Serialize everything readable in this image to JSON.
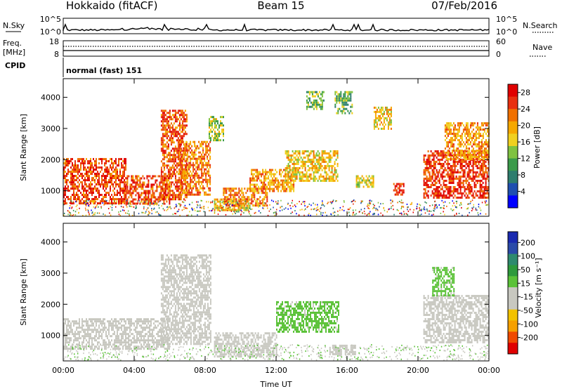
{
  "header": {
    "station": "Hokkaido (fitACF)",
    "beam": "Beam 15",
    "date": "07/Feb/2016"
  },
  "top_panel": {
    "left_label": "N.Sky",
    "right_label": "N.Search",
    "left_ticks": [
      "10^5",
      "10^0"
    ],
    "right_ticks": [
      "10^5",
      "10^0"
    ]
  },
  "freq_panel": {
    "left_label_1": "Freq.",
    "left_label_2": "[MHz]",
    "right_label": "Nave",
    "left_ticks": [
      "18",
      "8"
    ],
    "right_ticks": [
      "60",
      "0"
    ]
  },
  "cpid": {
    "label": "CPID",
    "value": "normal (fast) 151"
  },
  "colors": {
    "power": [
      "#0000ff",
      "#1f4fb0",
      "#2e7d6e",
      "#3a9a4a",
      "#7fc241",
      "#f0d020",
      "#f6a800",
      "#f07000",
      "#e83010",
      "#e00000"
    ],
    "velocity": [
      "#e00000",
      "#f04a00",
      "#f6a000",
      "#f2c200",
      "#c8c8c0",
      "#c8c8c0",
      "#5bc238",
      "#2e9a3c",
      "#2e8a6e",
      "#2a4aa8",
      "#1a2ab0"
    ]
  },
  "chart_data": [
    {
      "type": "heatmap",
      "title": "",
      "xlabel": "",
      "ylabel": "Slant Range [km]",
      "xlim": [
        0,
        24
      ],
      "ylim": [
        180,
        4600
      ],
      "x_ticks": [
        0,
        4,
        8,
        12,
        16,
        20,
        24
      ],
      "x_tick_labels": [
        "00:00",
        "04:00",
        "08:00",
        "12:00",
        "16:00",
        "20:00",
        "00:00"
      ],
      "y_ticks": [
        1000,
        2000,
        3000,
        4000
      ],
      "colorbar": {
        "label": "Power [dB]",
        "ticks": [
          "4",
          "8",
          "12",
          "16",
          "20",
          "24",
          "28"
        ],
        "range": [
          0,
          30
        ]
      },
      "regions": [
        {
          "t": [
            0.0,
            3.5
          ],
          "r": [
            600,
            2050
          ],
          "level": 25
        },
        {
          "t": [
            3.5,
            6.0
          ],
          "r": [
            600,
            1500
          ],
          "level": 24
        },
        {
          "t": [
            5.5,
            7.0
          ],
          "r": [
            700,
            3600
          ],
          "level": 24
        },
        {
          "t": [
            6.5,
            8.3
          ],
          "r": [
            900,
            2600
          ],
          "level": 22
        },
        {
          "t": [
            8.2,
            9.0
          ],
          "r": [
            2600,
            3400
          ],
          "level": 14
        },
        {
          "t": [
            8.5,
            10.5
          ],
          "r": [
            350,
            750
          ],
          "level": 18
        },
        {
          "t": [
            9.0,
            11.5
          ],
          "r": [
            500,
            1100
          ],
          "level": 22
        },
        {
          "t": [
            10.5,
            13.0
          ],
          "r": [
            1000,
            1700
          ],
          "level": 20
        },
        {
          "t": [
            12.5,
            15.5
          ],
          "r": [
            1300,
            2300
          ],
          "level": 18
        },
        {
          "t": [
            13.7,
            14.7
          ],
          "r": [
            3600,
            4200
          ],
          "level": 12
        },
        {
          "t": [
            15.3,
            16.3
          ],
          "r": [
            3500,
            4200
          ],
          "level": 12
        },
        {
          "t": [
            16.5,
            17.5
          ],
          "r": [
            1100,
            1500
          ],
          "level": 16
        },
        {
          "t": [
            17.5,
            18.5
          ],
          "r": [
            3000,
            3700
          ],
          "level": 18
        },
        {
          "t": [
            18.6,
            19.2
          ],
          "r": [
            900,
            1250
          ],
          "level": 26
        },
        {
          "t": [
            20.3,
            24.0
          ],
          "r": [
            800,
            2300
          ],
          "level": 26
        },
        {
          "t": [
            21.5,
            24.0
          ],
          "r": [
            2000,
            3200
          ],
          "level": 20
        }
      ]
    },
    {
      "type": "heatmap",
      "title": "",
      "xlabel": "Time UT",
      "ylabel": "Slant Range [km]",
      "xlim": [
        0,
        24
      ],
      "ylim": [
        180,
        4600
      ],
      "x_ticks": [
        0,
        4,
        8,
        12,
        16,
        20,
        24
      ],
      "x_tick_labels": [
        "00:00",
        "04:00",
        "08:00",
        "12:00",
        "16:00",
        "20:00",
        "00:00"
      ],
      "y_ticks": [
        1000,
        2000,
        3000,
        4000
      ],
      "colorbar": {
        "label": "Velocity [m s⁻¹]",
        "ticks": [
          "200",
          "100",
          "50",
          "15",
          "-15",
          "-50",
          "-100",
          "-200"
        ],
        "range": [
          -250,
          250
        ]
      },
      "regions": [
        {
          "t": [
            0.0,
            6.0
          ],
          "r": [
            600,
            1550
          ],
          "level": 0
        },
        {
          "t": [
            5.5,
            8.3
          ],
          "r": [
            700,
            3600
          ],
          "level": 0
        },
        {
          "t": [
            8.5,
            12.0
          ],
          "r": [
            350,
            1100
          ],
          "level": 0
        },
        {
          "t": [
            12.0,
            15.5
          ],
          "r": [
            1100,
            2100
          ],
          "level": 40
        },
        {
          "t": [
            15.0,
            16.5
          ],
          "r": [
            400,
            700
          ],
          "level": -30
        },
        {
          "t": [
            20.3,
            24.0
          ],
          "r": [
            800,
            2300
          ],
          "level": 0
        },
        {
          "t": [
            20.8,
            22.0
          ],
          "r": [
            2300,
            3200
          ],
          "level": 40
        }
      ]
    }
  ]
}
